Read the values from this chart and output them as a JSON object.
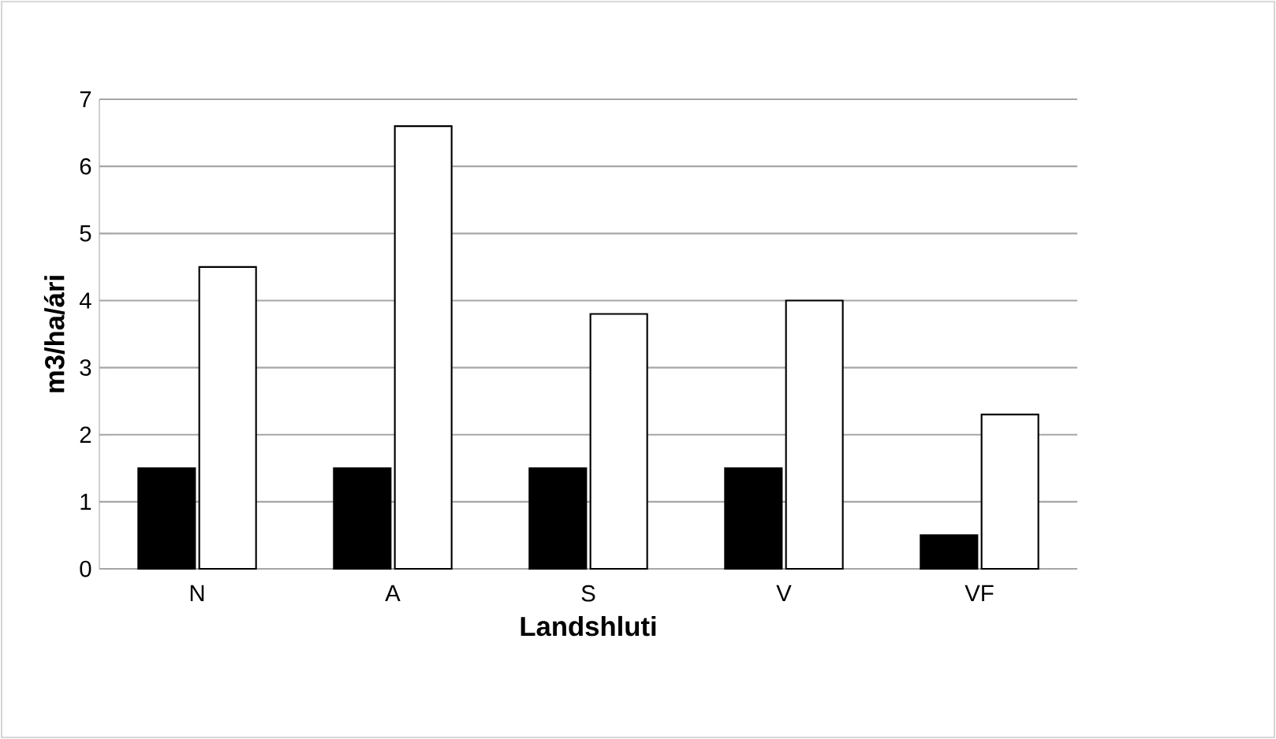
{
  "chart_data": {
    "type": "bar",
    "xlabel": "Landshluti",
    "ylabel": "m3/ha/ári",
    "categories": [
      "N",
      "A",
      "S",
      "V",
      "VF"
    ],
    "series": [
      {
        "color": "#000000",
        "values": [
          1.5,
          1.5,
          1.5,
          1.5,
          0.5
        ]
      },
      {
        "color": "#ffffff",
        "values": [
          4.5,
          6.6,
          3.8,
          4.0,
          2.3
        ]
      }
    ],
    "ylim": [
      0,
      7
    ],
    "yticks": [
      0,
      1,
      2,
      3,
      4,
      5,
      6,
      7
    ],
    "grid": "y"
  }
}
